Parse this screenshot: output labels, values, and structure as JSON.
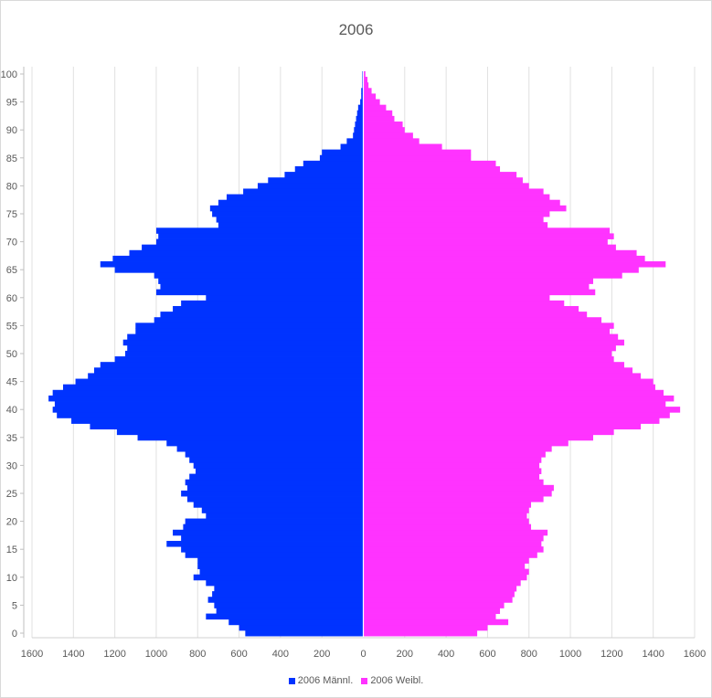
{
  "chart_data": {
    "type": "bar",
    "orientation": "horizontal",
    "title": "2006",
    "xlabel": "",
    "ylabel": "",
    "xlim": [
      -1600,
      1600
    ],
    "ylim": [
      0,
      100
    ],
    "x_ticks": [
      -1600,
      -1400,
      -1200,
      -1000,
      -800,
      -600,
      -400,
      -200,
      0,
      200,
      400,
      600,
      800,
      1000,
      1200,
      1400,
      1600
    ],
    "x_tick_labels": [
      "1600",
      "1400",
      "1200",
      "1000",
      "800",
      "600",
      "400",
      "200",
      "0",
      "200",
      "400",
      "600",
      "800",
      "1000",
      "1200",
      "1400",
      "1600"
    ],
    "y_ticks": [
      0,
      5,
      10,
      15,
      20,
      25,
      30,
      35,
      40,
      45,
      50,
      55,
      60,
      65,
      70,
      75,
      80,
      85,
      90,
      95,
      100
    ],
    "grid": "vertical",
    "legend_position": "bottom",
    "categories": [
      0,
      1,
      2,
      3,
      4,
      5,
      6,
      7,
      8,
      9,
      10,
      11,
      12,
      13,
      14,
      15,
      16,
      17,
      18,
      19,
      20,
      21,
      22,
      23,
      24,
      25,
      26,
      27,
      28,
      29,
      30,
      31,
      32,
      33,
      34,
      35,
      36,
      37,
      38,
      39,
      40,
      41,
      42,
      43,
      44,
      45,
      46,
      47,
      48,
      49,
      50,
      51,
      52,
      53,
      54,
      55,
      56,
      57,
      58,
      59,
      60,
      61,
      62,
      63,
      64,
      65,
      66,
      67,
      68,
      69,
      70,
      71,
      72,
      73,
      74,
      75,
      76,
      77,
      78,
      79,
      80,
      81,
      82,
      83,
      84,
      85,
      86,
      87,
      88,
      89,
      90,
      91,
      92,
      93,
      94,
      95,
      96,
      97,
      98,
      99,
      100
    ],
    "series": [
      {
        "name": "2006 Männl.",
        "color": "#0033ff",
        "values": [
          570,
          600,
          650,
          760,
          710,
          720,
          750,
          730,
          720,
          760,
          820,
          790,
          800,
          800,
          860,
          880,
          950,
          880,
          920,
          870,
          860,
          760,
          780,
          820,
          850,
          880,
          850,
          860,
          840,
          810,
          820,
          840,
          860,
          900,
          950,
          1090,
          1190,
          1320,
          1410,
          1480,
          1500,
          1490,
          1520,
          1500,
          1450,
          1390,
          1330,
          1300,
          1270,
          1200,
          1150,
          1140,
          1160,
          1140,
          1100,
          1100,
          1010,
          980,
          920,
          880,
          760,
          1000,
          980,
          990,
          1010,
          1200,
          1270,
          1210,
          1130,
          1070,
          1000,
          990,
          1000,
          700,
          710,
          730,
          740,
          700,
          660,
          580,
          510,
          460,
          380,
          330,
          290,
          210,
          200,
          110,
          80,
          50,
          45,
          40,
          35,
          30,
          25,
          15,
          10,
          10,
          5,
          5,
          5
        ]
      },
      {
        "name": "2006 Weibl.",
        "color": "#ff33ff",
        "values": [
          550,
          600,
          700,
          640,
          660,
          680,
          720,
          730,
          740,
          760,
          790,
          800,
          780,
          800,
          840,
          870,
          860,
          870,
          890,
          810,
          800,
          790,
          800,
          810,
          870,
          910,
          920,
          870,
          850,
          860,
          850,
          860,
          880,
          910,
          990,
          1110,
          1210,
          1340,
          1430,
          1480,
          1530,
          1460,
          1500,
          1450,
          1410,
          1400,
          1340,
          1300,
          1260,
          1210,
          1200,
          1220,
          1260,
          1230,
          1190,
          1210,
          1150,
          1080,
          1040,
          970,
          900,
          1120,
          1090,
          1110,
          1250,
          1330,
          1460,
          1360,
          1320,
          1220,
          1180,
          1210,
          1190,
          890,
          870,
          900,
          980,
          950,
          900,
          870,
          800,
          770,
          740,
          660,
          640,
          520,
          520,
          380,
          270,
          240,
          200,
          190,
          150,
          140,
          110,
          80,
          60,
          40,
          25,
          20,
          10
        ]
      }
    ]
  }
}
